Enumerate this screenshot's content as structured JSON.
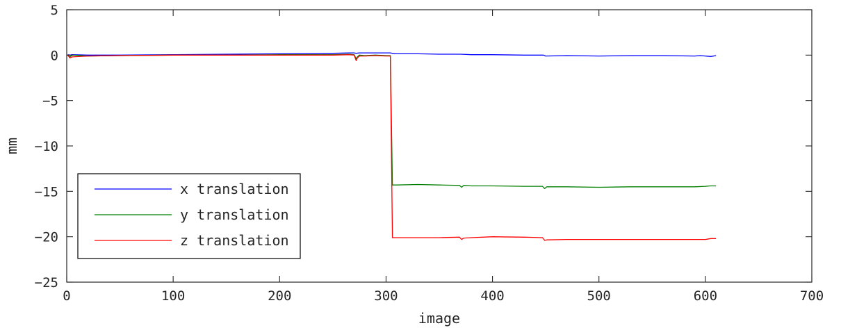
{
  "chart_data": {
    "type": "line",
    "title": "",
    "xlabel": "image",
    "ylabel": "mm",
    "xlim": [
      0,
      700
    ],
    "ylim": [
      -25,
      5
    ],
    "xticks": [
      0,
      100,
      200,
      300,
      400,
      500,
      600,
      700
    ],
    "yticks": [
      5,
      0,
      -5,
      -10,
      -15,
      -20,
      -25
    ],
    "xtick_labels": [
      "0",
      "100",
      "200",
      "300",
      "400",
      "500",
      "600",
      "700"
    ],
    "ytick_labels": [
      "5",
      "0",
      "−5",
      "−10",
      "−15",
      "−20",
      "−25"
    ],
    "grid": false,
    "legend_position": "lower-left",
    "series": [
      {
        "name": "x translation",
        "color": "#0000ff",
        "x": [
          1,
          3,
          5,
          20,
          50,
          100,
          150,
          200,
          250,
          265,
          270,
          272,
          275,
          280,
          290,
          300,
          304,
          306,
          310,
          330,
          350,
          370,
          380,
          400,
          430,
          448,
          450,
          470,
          500,
          530,
          560,
          590,
          595,
          600,
          605,
          610
        ],
        "y": [
          0.05,
          0.0,
          0.05,
          0.0,
          0.0,
          0.05,
          0.1,
          0.15,
          0.2,
          0.25,
          0.25,
          0.2,
          0.25,
          0.25,
          0.25,
          0.25,
          0.25,
          0.2,
          0.15,
          0.15,
          0.1,
          0.1,
          0.05,
          0.05,
          0.0,
          0.0,
          -0.1,
          -0.05,
          -0.1,
          -0.05,
          -0.05,
          -0.1,
          -0.05,
          -0.1,
          -0.15,
          -0.05
        ]
      },
      {
        "name": "y translation",
        "color": "#007f00",
        "x": [
          1,
          3,
          5,
          20,
          50,
          100,
          150,
          200,
          250,
          265,
          270,
          272,
          273,
          275,
          280,
          290,
          300,
          304,
          305,
          306,
          310,
          330,
          350,
          369,
          371,
          373,
          380,
          400,
          430,
          447,
          449,
          451,
          470,
          500,
          530,
          560,
          590,
          600,
          605,
          610
        ],
        "y": [
          0.0,
          -0.2,
          0.0,
          -0.1,
          -0.05,
          0.0,
          0.0,
          0.05,
          0.05,
          0.1,
          0.05,
          -0.4,
          -0.2,
          0.0,
          -0.05,
          0.0,
          -0.05,
          -0.05,
          -7.0,
          -14.3,
          -14.3,
          -14.25,
          -14.3,
          -14.35,
          -14.55,
          -14.35,
          -14.4,
          -14.4,
          -14.45,
          -14.45,
          -14.7,
          -14.5,
          -14.5,
          -14.55,
          -14.5,
          -14.5,
          -14.5,
          -14.45,
          -14.4,
          -14.4
        ]
      },
      {
        "name": "z translation",
        "color": "#ff0000",
        "x": [
          1,
          3,
          5,
          20,
          50,
          100,
          150,
          200,
          250,
          265,
          270,
          272,
          273,
          275,
          280,
          290,
          300,
          304,
          305,
          306,
          310,
          330,
          350,
          369,
          371,
          373,
          380,
          400,
          430,
          447,
          449,
          451,
          470,
          500,
          530,
          560,
          590,
          600,
          605,
          610
        ],
        "y": [
          0.0,
          -0.3,
          -0.2,
          -0.1,
          -0.05,
          0.0,
          0.0,
          0.0,
          0.0,
          0.05,
          0.0,
          -0.6,
          -0.3,
          -0.1,
          -0.1,
          -0.05,
          -0.1,
          -0.1,
          -10.0,
          -20.1,
          -20.1,
          -20.1,
          -20.1,
          -20.05,
          -20.3,
          -20.15,
          -20.1,
          -20.0,
          -20.05,
          -20.1,
          -20.4,
          -20.35,
          -20.3,
          -20.3,
          -20.3,
          -20.3,
          -20.3,
          -20.3,
          -20.2,
          -20.2
        ]
      }
    ]
  }
}
